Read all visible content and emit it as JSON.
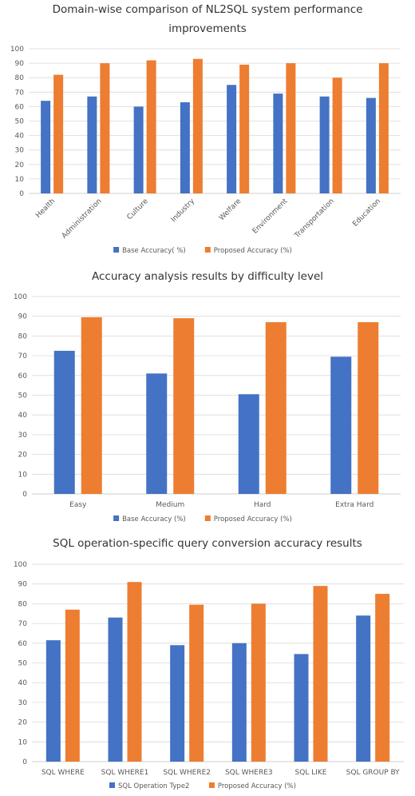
{
  "chart_data": [
    {
      "type": "bar",
      "title": "Domain-wise comparison of NL2SQL system performance improvements",
      "title_lines": [
        "Domain-wise comparison of NL2SQL system performance",
        "improvements"
      ],
      "categories": [
        "Health",
        "Administration",
        "Culture",
        "Industry",
        "Welfare",
        "Environment",
        "Transportation",
        "Education"
      ],
      "series": [
        {
          "name": "Base Accuracy( %)",
          "color": "#4472C4",
          "values": [
            64,
            67,
            60,
            63,
            75,
            69,
            67,
            66
          ]
        },
        {
          "name": "Proposed Accuracy (%)",
          "color": "#ED7D31",
          "values": [
            82,
            90,
            92,
            93,
            89,
            90,
            80,
            90
          ]
        }
      ],
      "ylim": [
        0,
        100
      ],
      "yticks": [
        0,
        10,
        20,
        30,
        40,
        50,
        60,
        70,
        80,
        90,
        100
      ],
      "grid": true,
      "legend": "bottom",
      "xlabel": "",
      "ylabel": ""
    },
    {
      "type": "bar",
      "title": "Accuracy analysis results by difficulty level",
      "title_lines": [
        "Accuracy analysis results by difficulty level"
      ],
      "categories": [
        "Easy",
        "Medium",
        "Hard",
        "Extra Hard"
      ],
      "series": [
        {
          "name": "Base Accuracy (%)",
          "color": "#4472C4",
          "values": [
            72.5,
            61,
            50.5,
            69.5
          ]
        },
        {
          "name": "Proposed Accuracy (%)",
          "color": "#ED7D31",
          "values": [
            89.5,
            89,
            87,
            87
          ]
        }
      ],
      "ylim": [
        0,
        100
      ],
      "yticks": [
        0,
        10,
        20,
        30,
        40,
        50,
        60,
        70,
        80,
        90,
        100
      ],
      "grid": true,
      "legend": "bottom",
      "xlabel": "",
      "ylabel": ""
    },
    {
      "type": "bar",
      "title": "SQL operation-specific query conversion accuracy results",
      "title_lines": [
        "SQL operation-specific query conversion accuracy results"
      ],
      "categories": [
        "SQL WHERE",
        "SQL WHERE1",
        "SQL WHERE2",
        "SQL WHERE3",
        "SQL LIKE",
        "SQL GROUP BY"
      ],
      "series": [
        {
          "name": "SQL Operation Type2",
          "color": "#4472C4",
          "values": [
            61.5,
            73,
            59,
            60,
            54.5,
            74
          ]
        },
        {
          "name": "Proposed Accuracy (%)",
          "color": "#ED7D31",
          "values": [
            77,
            91,
            79.5,
            80,
            89,
            85
          ]
        }
      ],
      "ylim": [
        0,
        100
      ],
      "yticks": [
        0,
        10,
        20,
        30,
        40,
        50,
        60,
        70,
        80,
        90,
        100
      ],
      "grid": true,
      "legend": "bottom",
      "xlabel": "",
      "ylabel": ""
    }
  ]
}
